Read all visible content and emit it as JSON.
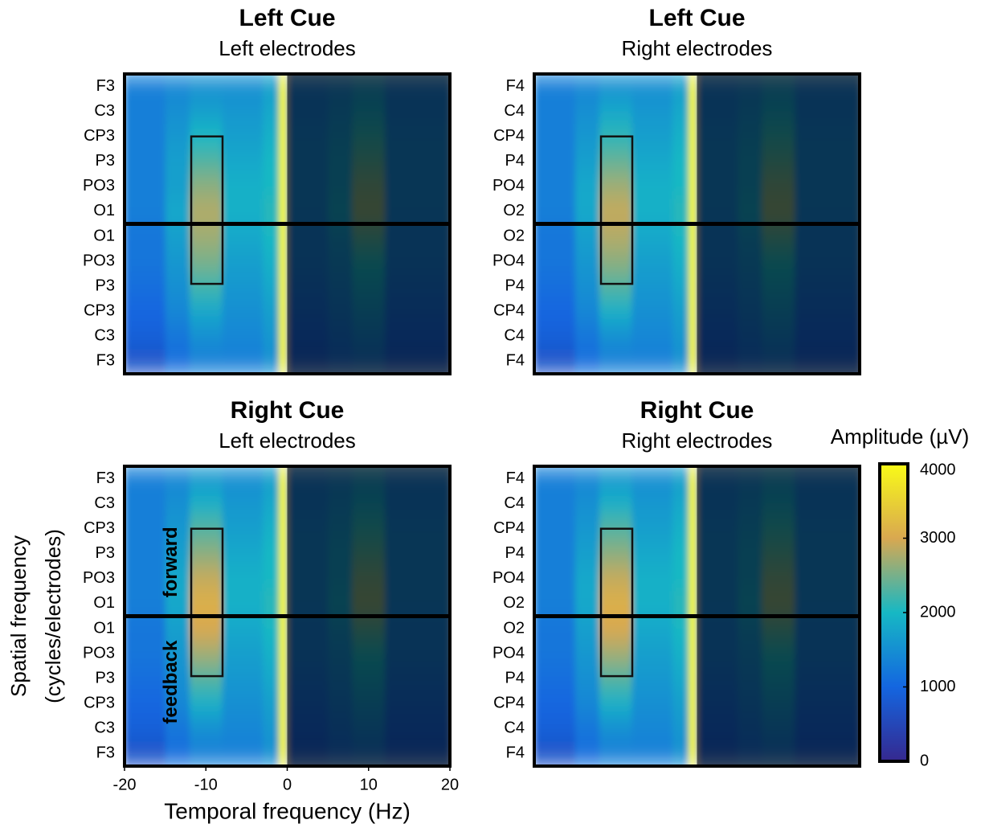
{
  "chart_data": [
    {
      "type": "heatmap",
      "title": "Left Cue",
      "subtitle": "Left electrodes",
      "categories": [
        "F3",
        "C3",
        "CP3",
        "P3",
        "PO3",
        "O1",
        "O1",
        "PO3",
        "P3",
        "CP3",
        "C3",
        "F3"
      ],
      "xbins": [
        -20,
        -15,
        -12,
        -8,
        -3,
        -1,
        0,
        5,
        8,
        12,
        20
      ],
      "xlim": [
        -20,
        20
      ],
      "values": [
        [
          1300,
          1400,
          1500,
          1500,
          1700,
          4000,
          1300,
          1400,
          1600,
          1300
        ],
        [
          1300,
          1500,
          1700,
          1600,
          1800,
          4000,
          1300,
          1500,
          1800,
          1300
        ],
        [
          1300,
          1600,
          2000,
          1700,
          1900,
          4000,
          1400,
          1600,
          2100,
          1400
        ],
        [
          1300,
          1700,
          2300,
          1800,
          2000,
          4000,
          1400,
          1700,
          2300,
          1400
        ],
        [
          1300,
          1700,
          2600,
          1900,
          2000,
          4000,
          1400,
          1700,
          2500,
          1400
        ],
        [
          1300,
          1800,
          2800,
          1900,
          2100,
          4000,
          1400,
          1800,
          2600,
          1400
        ],
        [
          1200,
          1700,
          2700,
          1800,
          2000,
          4000,
          1300,
          1600,
          2300,
          1300
        ],
        [
          1200,
          1600,
          2500,
          1700,
          1900,
          4000,
          1300,
          1500,
          2000,
          1300
        ],
        [
          1100,
          1500,
          2200,
          1600,
          1800,
          4000,
          1200,
          1400,
          1800,
          1200
        ],
        [
          1000,
          1400,
          1800,
          1500,
          1700,
          4000,
          1100,
          1300,
          1600,
          1100
        ],
        [
          900,
          1200,
          1500,
          1400,
          1600,
          4000,
          1000,
          1200,
          1400,
          1000
        ],
        [
          700,
          1100,
          1300,
          1300,
          1500,
          4000,
          900,
          1100,
          1200,
          900
        ]
      ]
    },
    {
      "type": "heatmap",
      "title": "Left Cue",
      "subtitle": "Right electrodes",
      "categories": [
        "F4",
        "C4",
        "CP4",
        "P4",
        "PO4",
        "O2",
        "O2",
        "PO4",
        "P4",
        "CP4",
        "C4",
        "F4"
      ],
      "xbins": [
        -20,
        -15,
        -12,
        -8,
        -3,
        -1,
        0,
        5,
        8,
        12,
        20
      ],
      "xlim": [
        -20,
        20
      ],
      "values": [
        [
          1300,
          1400,
          1500,
          1500,
          1700,
          4000,
          1300,
          1400,
          1600,
          1300
        ],
        [
          1300,
          1500,
          1800,
          1600,
          1800,
          4000,
          1300,
          1500,
          1800,
          1300
        ],
        [
          1300,
          1600,
          2100,
          1700,
          1900,
          4000,
          1400,
          1600,
          2100,
          1400
        ],
        [
          1300,
          1700,
          2400,
          1800,
          2000,
          4000,
          1400,
          1700,
          2300,
          1400
        ],
        [
          1300,
          1800,
          2700,
          1900,
          2000,
          4000,
          1400,
          1700,
          2500,
          1400
        ],
        [
          1300,
          1800,
          2900,
          1900,
          2100,
          4000,
          1400,
          1800,
          2600,
          1400
        ],
        [
          1200,
          1700,
          2800,
          1800,
          2000,
          4000,
          1300,
          1600,
          2300,
          1300
        ],
        [
          1200,
          1600,
          2600,
          1700,
          1900,
          4000,
          1300,
          1500,
          2000,
          1300
        ],
        [
          1100,
          1500,
          2300,
          1600,
          1800,
          4000,
          1200,
          1400,
          1800,
          1200
        ],
        [
          1000,
          1400,
          1900,
          1500,
          1700,
          4000,
          1100,
          1300,
          1600,
          1100
        ],
        [
          900,
          1200,
          1500,
          1400,
          1600,
          4000,
          1000,
          1200,
          1400,
          1000
        ],
        [
          700,
          1100,
          1300,
          1300,
          1500,
          4000,
          900,
          1100,
          1200,
          900
        ]
      ]
    },
    {
      "type": "heatmap",
      "title": "Right Cue",
      "subtitle": "Left electrodes",
      "categories": [
        "F3",
        "C3",
        "CP3",
        "P3",
        "PO3",
        "O1",
        "O1",
        "PO3",
        "P3",
        "CP3",
        "C3",
        "F3"
      ],
      "xbins": [
        -20,
        -15,
        -12,
        -8,
        -3,
        -1,
        0,
        5,
        8,
        12,
        20
      ],
      "xlim": [
        -20,
        20
      ],
      "xticks": [
        -20,
        -10,
        0,
        10,
        20
      ],
      "xlabel": "Temporal frequency (Hz)",
      "ylabel": [
        "Spatial frequency",
        "(cycles/electrodes)"
      ],
      "annotations": [
        "forward",
        "feedback"
      ],
      "values": [
        [
          1300,
          1400,
          1600,
          1500,
          1700,
          4000,
          1300,
          1400,
          1600,
          1300
        ],
        [
          1300,
          1500,
          1900,
          1600,
          1800,
          4000,
          1300,
          1500,
          1800,
          1300
        ],
        [
          1300,
          1600,
          2300,
          1700,
          1900,
          4000,
          1400,
          1600,
          2100,
          1400
        ],
        [
          1300,
          1700,
          2600,
          1800,
          2000,
          4000,
          1400,
          1700,
          2300,
          1400
        ],
        [
          1300,
          1800,
          2900,
          1900,
          2000,
          4000,
          1400,
          1700,
          2500,
          1400
        ],
        [
          1300,
          1800,
          3100,
          1900,
          2100,
          4000,
          1400,
          1800,
          2600,
          1400
        ],
        [
          1200,
          1700,
          3000,
          1800,
          2000,
          4000,
          1300,
          1600,
          2300,
          1300
        ],
        [
          1200,
          1600,
          2700,
          1700,
          1900,
          4000,
          1300,
          1500,
          2000,
          1300
        ],
        [
          1100,
          1500,
          2300,
          1600,
          1800,
          4000,
          1200,
          1400,
          1800,
          1200
        ],
        [
          1000,
          1400,
          1900,
          1500,
          1700,
          4000,
          1100,
          1300,
          1600,
          1100
        ],
        [
          900,
          1200,
          1500,
          1400,
          1600,
          4000,
          1000,
          1200,
          1400,
          1000
        ],
        [
          700,
          1100,
          1300,
          1300,
          1500,
          4000,
          900,
          1100,
          1200,
          900
        ]
      ]
    },
    {
      "type": "heatmap",
      "title": "Right Cue",
      "subtitle": "Right electrodes",
      "categories": [
        "F4",
        "C4",
        "CP4",
        "P4",
        "PO4",
        "O2",
        "O2",
        "PO4",
        "P4",
        "CP4",
        "C4",
        "F4"
      ],
      "xbins": [
        -20,
        -15,
        -12,
        -8,
        -3,
        -1,
        0,
        5,
        8,
        12,
        20
      ],
      "xlim": [
        -20,
        20
      ],
      "values": [
        [
          1300,
          1400,
          1600,
          1500,
          1700,
          4000,
          1300,
          1400,
          1600,
          1300
        ],
        [
          1300,
          1500,
          1900,
          1600,
          1800,
          4000,
          1300,
          1500,
          1800,
          1300
        ],
        [
          1300,
          1600,
          2300,
          1700,
          1900,
          4000,
          1400,
          1600,
          2100,
          1400
        ],
        [
          1300,
          1700,
          2600,
          1800,
          2000,
          4000,
          1400,
          1700,
          2300,
          1400
        ],
        [
          1300,
          1800,
          2900,
          1900,
          2000,
          4000,
          1400,
          1700,
          2500,
          1400
        ],
        [
          1300,
          1800,
          3100,
          1900,
          2100,
          4000,
          1400,
          1800,
          2600,
          1400
        ],
        [
          1200,
          1700,
          3000,
          1800,
          2000,
          4000,
          1300,
          1600,
          2300,
          1300
        ],
        [
          1200,
          1600,
          2700,
          1700,
          1900,
          4000,
          1300,
          1500,
          2000,
          1300
        ],
        [
          1100,
          1500,
          2300,
          1600,
          1800,
          4000,
          1200,
          1400,
          1800,
          1200
        ],
        [
          1000,
          1400,
          1900,
          1500,
          1700,
          4000,
          1100,
          1300,
          1600,
          1100
        ],
        [
          900,
          1200,
          1500,
          1400,
          1600,
          4000,
          1000,
          1200,
          1400,
          1000
        ],
        [
          700,
          1100,
          1300,
          1300,
          1500,
          4000,
          900,
          1100,
          1200,
          900
        ]
      ]
    }
  ],
  "colorbar": {
    "label": "Amplitude (µV)",
    "clim": [
      0,
      4000
    ],
    "ticks": [
      0,
      1000,
      2000,
      3000,
      4000
    ],
    "colormap": [
      "#35288f",
      "#1466e0",
      "#16b8c4",
      "#d9a850",
      "#f9fb17"
    ]
  }
}
